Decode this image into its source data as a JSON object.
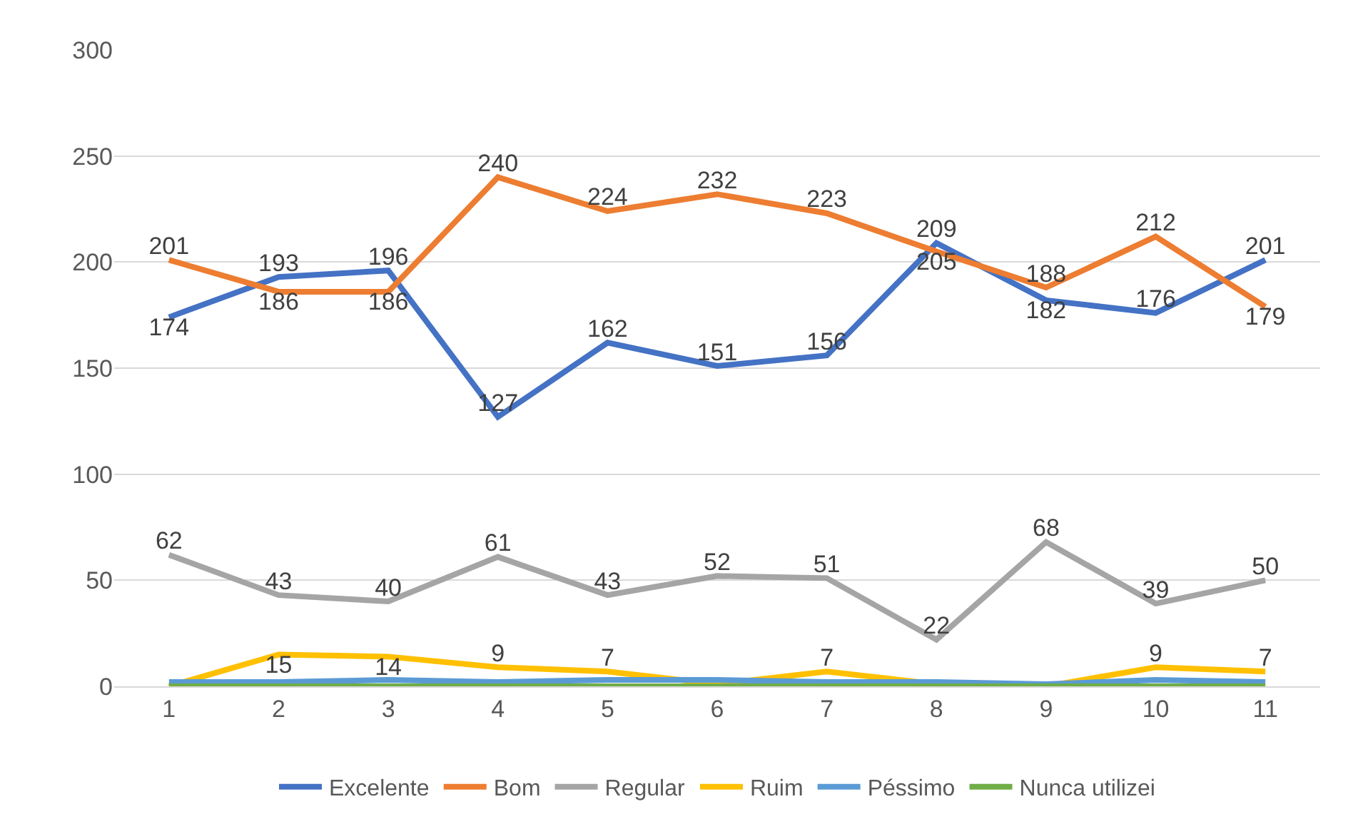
{
  "chart_data": {
    "type": "line",
    "categories": [
      "1",
      "2",
      "3",
      "4",
      "5",
      "6",
      "7",
      "8",
      "9",
      "10",
      "11"
    ],
    "series": [
      {
        "name": "Excelente",
        "color": "#4472c4",
        "values": [
          174,
          193,
          196,
          127,
          162,
          151,
          156,
          209,
          182,
          176,
          201
        ],
        "value_labels": [
          "174",
          "193",
          "196",
          "127",
          "162",
          "151",
          "156",
          "209",
          "182",
          "176",
          "201"
        ]
      },
      {
        "name": "Bom",
        "color": "#ed7d31",
        "values": [
          201,
          186,
          186,
          240,
          224,
          232,
          223,
          205,
          188,
          212,
          179
        ],
        "value_labels": [
          "201",
          "186",
          "186",
          "240",
          "224",
          "232",
          "223",
          "205",
          "188",
          "212",
          "179"
        ]
      },
      {
        "name": "Regular",
        "color": "#a5a5a5",
        "values": [
          62,
          43,
          40,
          61,
          43,
          52,
          51,
          22,
          68,
          39,
          50
        ],
        "value_labels": [
          "62",
          "43",
          "40",
          "61",
          "43",
          "52",
          "51",
          "22",
          "68",
          "39",
          "50"
        ]
      },
      {
        "name": "Ruim",
        "color": "#ffc000",
        "values": [
          0,
          15,
          14,
          9,
          7,
          1,
          7,
          1,
          0,
          9,
          7
        ],
        "value_labels": [
          null,
          "15",
          "14",
          "9",
          "7",
          null,
          "7",
          null,
          null,
          "9",
          "7"
        ]
      },
      {
        "name": "Péssimo",
        "color": "#5b9bd5",
        "values": [
          2,
          2,
          3,
          2,
          3,
          3,
          2,
          2,
          1,
          3,
          2
        ]
      },
      {
        "name": "Nunca utilizei",
        "color": "#70ad47",
        "values": [
          0,
          0,
          0,
          0,
          0,
          0,
          0,
          0,
          0,
          0,
          0
        ]
      }
    ],
    "ylim": [
      0,
      300
    ],
    "yticks": [
      0,
      50,
      100,
      150,
      200,
      250,
      300
    ],
    "grid": "y",
    "legend": "bottom",
    "marker": "none",
    "line_style": "solid"
  }
}
